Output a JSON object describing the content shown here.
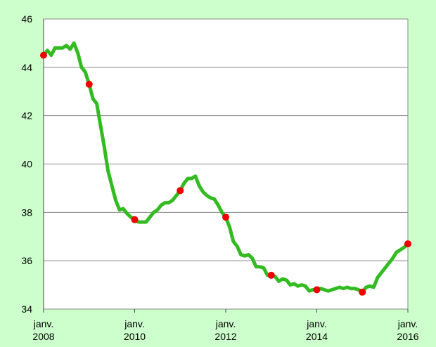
{
  "chart_data": {
    "type": "line",
    "x": [
      "2008-01",
      "2008-02",
      "2008-03",
      "2008-04",
      "2008-05",
      "2008-06",
      "2008-07",
      "2008-08",
      "2008-09",
      "2008-10",
      "2008-11",
      "2008-12",
      "2009-01",
      "2009-02",
      "2009-03",
      "2009-04",
      "2009-05",
      "2009-06",
      "2009-07",
      "2009-08",
      "2009-09",
      "2009-10",
      "2009-11",
      "2009-12",
      "2010-01",
      "2010-02",
      "2010-03",
      "2010-04",
      "2010-05",
      "2010-06",
      "2010-07",
      "2010-08",
      "2010-09",
      "2010-10",
      "2010-11",
      "2010-12",
      "2011-01",
      "2011-02",
      "2011-03",
      "2011-04",
      "2011-05",
      "2011-06",
      "2011-07",
      "2011-08",
      "2011-09",
      "2011-10",
      "2011-11",
      "2011-12",
      "2012-01",
      "2012-02",
      "2012-03",
      "2012-04",
      "2012-05",
      "2012-06",
      "2012-07",
      "2012-08",
      "2012-09",
      "2012-10",
      "2012-11",
      "2012-12",
      "2013-01",
      "2013-02",
      "2013-03",
      "2013-04",
      "2013-05",
      "2013-06",
      "2013-07",
      "2013-08",
      "2013-09",
      "2013-10",
      "2013-11",
      "2013-12",
      "2014-01",
      "2014-02",
      "2014-03",
      "2014-04",
      "2014-05",
      "2014-06",
      "2014-07",
      "2014-08",
      "2014-09",
      "2014-10",
      "2014-11",
      "2014-12",
      "2015-01",
      "2015-02",
      "2015-03",
      "2015-04",
      "2015-05",
      "2015-06",
      "2015-07",
      "2015-08",
      "2015-09",
      "2015-10",
      "2015-11",
      "2015-12",
      "2016-01"
    ],
    "series": [
      {
        "color": "#33bb22",
        "values": [
          44.5,
          44.7,
          44.5,
          44.8,
          44.8,
          44.8,
          44.9,
          44.75,
          45.0,
          44.6,
          44.0,
          43.8,
          43.3,
          42.7,
          42.5,
          41.6,
          40.7,
          39.7,
          39.1,
          38.5,
          38.1,
          38.15,
          37.95,
          37.8,
          37.7,
          37.6,
          37.6,
          37.6,
          37.8,
          38.0,
          38.1,
          38.3,
          38.4,
          38.4,
          38.5,
          38.7,
          38.9,
          39.2,
          39.4,
          39.4,
          39.5,
          39.1,
          38.85,
          38.7,
          38.6,
          38.55,
          38.3,
          38.0,
          37.8,
          37.4,
          36.8,
          36.6,
          36.25,
          36.2,
          36.25,
          36.1,
          35.75,
          35.75,
          35.7,
          35.4,
          35.4,
          35.35,
          35.15,
          35.25,
          35.2,
          35.0,
          35.05,
          34.95,
          35.0,
          34.95,
          34.75,
          34.8,
          34.8,
          34.85,
          34.8,
          34.75,
          34.8,
          34.85,
          34.9,
          34.85,
          34.9,
          34.85,
          34.85,
          34.8,
          34.7,
          34.9,
          34.95,
          34.9,
          35.3,
          35.5,
          35.7,
          35.9,
          36.1,
          36.35,
          36.45,
          36.55,
          36.7
        ]
      }
    ],
    "marker_every": 12,
    "marker_color": "#ee0000",
    "xlim": [
      "2008-01",
      "2016-01"
    ],
    "xticks": [
      {
        "value": "2008-01",
        "label": "janv. 2008"
      },
      {
        "value": "2010-01",
        "label": "janv. 2010"
      },
      {
        "value": "2012-01",
        "label": "janv. 2012"
      },
      {
        "value": "2014-01",
        "label": "janv. 2014"
      },
      {
        "value": "2016-01",
        "label": "janv. 2016"
      }
    ],
    "ylim": [
      34,
      46
    ],
    "yticks": [
      34,
      36,
      38,
      40,
      42,
      44,
      46
    ],
    "grid": true
  }
}
